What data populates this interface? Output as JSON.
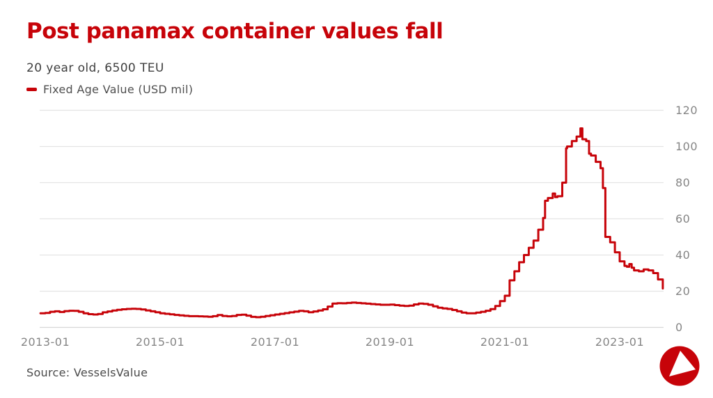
{
  "header": {
    "title": "Post panamax container values fall",
    "subtitle": "20 year old, 6500 TEU"
  },
  "legend": {
    "label": "Fixed Age Value (USD mil)"
  },
  "footer": {
    "source": "Source: VesselsValue",
    "logo": "vesselsvalue-logo"
  },
  "colors": {
    "accent": "#c70309",
    "grid": "#e4e4e4",
    "axis_line": "#d6d6d6",
    "tick_text": "#858585"
  },
  "chart_data": {
    "type": "line",
    "title": "Post panamax container values fall",
    "subtitle": "20 year old, 6500 TEU",
    "series_name": "Fixed Age Value (USD mil)",
    "ylabel": "",
    "xlabel": "",
    "ylim": [
      0,
      120
    ],
    "grid": true,
    "legend_position": "top-left",
    "x_unit": "months since 2013-01 (fractional values are intra-month steps)",
    "x_tick_labels": [
      "2013-01",
      "2015-01",
      "2017-01",
      "2019-01",
      "2021-01",
      "2023-01"
    ],
    "x_tick_months": [
      0,
      24,
      48,
      72,
      96,
      120
    ],
    "y_ticks": [
      0,
      20,
      40,
      60,
      80,
      100,
      120
    ],
    "points": [
      [
        -1,
        7.8
      ],
      [
        0,
        8.0
      ],
      [
        1,
        8.6
      ],
      [
        2,
        8.9
      ],
      [
        3,
        8.5
      ],
      [
        4,
        9.0
      ],
      [
        5,
        9.2
      ],
      [
        6,
        9.1
      ],
      [
        7,
        8.6
      ],
      [
        8,
        7.8
      ],
      [
        9,
        7.3
      ],
      [
        10,
        7.1
      ],
      [
        11,
        7.4
      ],
      [
        12,
        8.3
      ],
      [
        13,
        8.8
      ],
      [
        14,
        9.3
      ],
      [
        15,
        9.7
      ],
      [
        16,
        10.0
      ],
      [
        17,
        10.2
      ],
      [
        18,
        10.3
      ],
      [
        19,
        10.2
      ],
      [
        20,
        9.9
      ],
      [
        21,
        9.4
      ],
      [
        22,
        8.9
      ],
      [
        23,
        8.4
      ],
      [
        24,
        7.8
      ],
      [
        25,
        7.5
      ],
      [
        26,
        7.2
      ],
      [
        27,
        6.9
      ],
      [
        28,
        6.6
      ],
      [
        29,
        6.4
      ],
      [
        30,
        6.2
      ],
      [
        31,
        6.2
      ],
      [
        32,
        6.1
      ],
      [
        33,
        6.0
      ],
      [
        34,
        5.9
      ],
      [
        35,
        6.2
      ],
      [
        36,
        6.8
      ],
      [
        37,
        6.3
      ],
      [
        38,
        6.1
      ],
      [
        39,
        6.3
      ],
      [
        40,
        6.9
      ],
      [
        41,
        7.0
      ],
      [
        42,
        6.5
      ],
      [
        43,
        5.8
      ],
      [
        44,
        5.6
      ],
      [
        45,
        5.9
      ],
      [
        46,
        6.3
      ],
      [
        47,
        6.7
      ],
      [
        48,
        7.1
      ],
      [
        49,
        7.5
      ],
      [
        50,
        7.9
      ],
      [
        51,
        8.3
      ],
      [
        52,
        8.7
      ],
      [
        53,
        9.1
      ],
      [
        54,
        8.9
      ],
      [
        55,
        8.4
      ],
      [
        56,
        8.8
      ],
      [
        57,
        9.3
      ],
      [
        58,
        10.0
      ],
      [
        59,
        11.5
      ],
      [
        60,
        13.2
      ],
      [
        61,
        13.4
      ],
      [
        62,
        13.3
      ],
      [
        63,
        13.5
      ],
      [
        64,
        13.7
      ],
      [
        65,
        13.5
      ],
      [
        66,
        13.3
      ],
      [
        67,
        13.1
      ],
      [
        68,
        12.9
      ],
      [
        69,
        12.7
      ],
      [
        70,
        12.5
      ],
      [
        71,
        12.5
      ],
      [
        72,
        12.6
      ],
      [
        73,
        12.3
      ],
      [
        74,
        12.0
      ],
      [
        75,
        11.8
      ],
      [
        76,
        12.0
      ],
      [
        77,
        12.7
      ],
      [
        78,
        13.2
      ],
      [
        79,
        13.0
      ],
      [
        80,
        12.5
      ],
      [
        81,
        11.6
      ],
      [
        82,
        10.9
      ],
      [
        83,
        10.5
      ],
      [
        84,
        10.2
      ],
      [
        85,
        9.6
      ],
      [
        86,
        8.9
      ],
      [
        87,
        8.2
      ],
      [
        88,
        7.8
      ],
      [
        89,
        7.8
      ],
      [
        90,
        8.2
      ],
      [
        91,
        8.6
      ],
      [
        92,
        9.2
      ],
      [
        93,
        10.1
      ],
      [
        94,
        11.8
      ],
      [
        95,
        14.5
      ],
      [
        96,
        17.5
      ],
      [
        97,
        26
      ],
      [
        98,
        31
      ],
      [
        99,
        36
      ],
      [
        100,
        40
      ],
      [
        101,
        44
      ],
      [
        102,
        48
      ],
      [
        103,
        54
      ],
      [
        104,
        60.5
      ],
      [
        104.4,
        70
      ],
      [
        105,
        71.5
      ],
      [
        106,
        74
      ],
      [
        106.5,
        72
      ],
      [
        107,
        72.5
      ],
      [
        108,
        80
      ],
      [
        108.8,
        99
      ],
      [
        109,
        100
      ],
      [
        110,
        103
      ],
      [
        111,
        105.5
      ],
      [
        111.8,
        110
      ],
      [
        112.2,
        104
      ],
      [
        113,
        103
      ],
      [
        113.6,
        96
      ],
      [
        114,
        95
      ],
      [
        115,
        91.5
      ],
      [
        116,
        88
      ],
      [
        116.5,
        77
      ],
      [
        117,
        50
      ],
      [
        118,
        47
      ],
      [
        119,
        41.5
      ],
      [
        120,
        36.5
      ],
      [
        121,
        34
      ],
      [
        121.5,
        33.5
      ],
      [
        122,
        35
      ],
      [
        122.5,
        33
      ],
      [
        123,
        31.5
      ],
      [
        124,
        31
      ],
      [
        125,
        32
      ],
      [
        126,
        31.5
      ],
      [
        127,
        30
      ],
      [
        128,
        26.5
      ],
      [
        129,
        21.5
      ]
    ]
  }
}
